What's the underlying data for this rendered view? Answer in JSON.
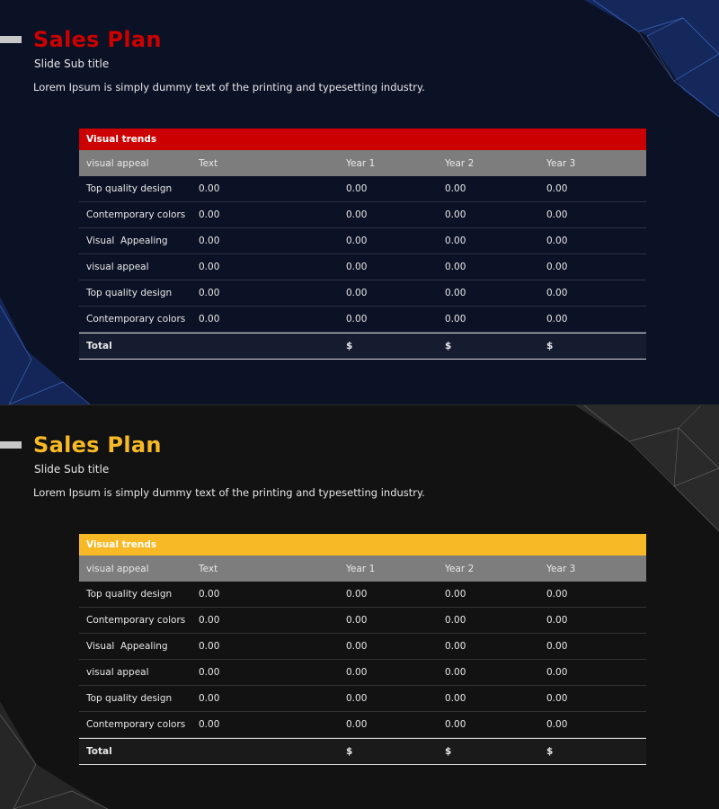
{
  "slides": [
    {
      "theme": "blue",
      "accent": "#cc0000",
      "title": "Sales Plan",
      "subtitle": "Slide Sub title",
      "body": "Lorem Ipsum is simply dummy text of the printing and typesetting industry.",
      "table": {
        "header": "Visual trends",
        "columns": [
          "visual appeal",
          "Text",
          "Year 1",
          "Year 2",
          "Year 3"
        ],
        "rows": [
          [
            "Top quality design",
            "0.00",
            "0.00",
            "0.00",
            "0.00"
          ],
          [
            "Contemporary colors",
            "0.00",
            "0.00",
            "0.00",
            "0.00"
          ],
          [
            "Visual  Appealing",
            "0.00",
            "0.00",
            "0.00",
            "0.00"
          ],
          [
            "visual appeal",
            "0.00",
            "0.00",
            "0.00",
            "0.00"
          ],
          [
            "Top quality design",
            "0.00",
            "0.00",
            "0.00",
            "0.00"
          ],
          [
            "Contemporary colors",
            "0.00",
            "0.00",
            "0.00",
            "0.00"
          ]
        ],
        "total": [
          "Total",
          "",
          "$",
          "$",
          "$"
        ]
      }
    },
    {
      "theme": "gray",
      "accent": "#f7b925",
      "title": "Sales Plan",
      "subtitle": "Slide Sub title",
      "body": "Lorem Ipsum is simply dummy text of the printing and typesetting industry.",
      "table": {
        "header": "Visual trends",
        "columns": [
          "visual appeal",
          "Text",
          "Year 1",
          "Year 2",
          "Year 3"
        ],
        "rows": [
          [
            "Top quality design",
            "0.00",
            "0.00",
            "0.00",
            "0.00"
          ],
          [
            "Contemporary colors",
            "0.00",
            "0.00",
            "0.00",
            "0.00"
          ],
          [
            "Visual  Appealing",
            "0.00",
            "0.00",
            "0.00",
            "0.00"
          ],
          [
            "visual appeal",
            "0.00",
            "0.00",
            "0.00",
            "0.00"
          ],
          [
            "Top quality design",
            "0.00",
            "0.00",
            "0.00",
            "0.00"
          ],
          [
            "Contemporary colors",
            "0.00",
            "0.00",
            "0.00",
            "0.00"
          ]
        ],
        "total": [
          "Total",
          "",
          "$",
          "$",
          "$"
        ]
      }
    }
  ]
}
